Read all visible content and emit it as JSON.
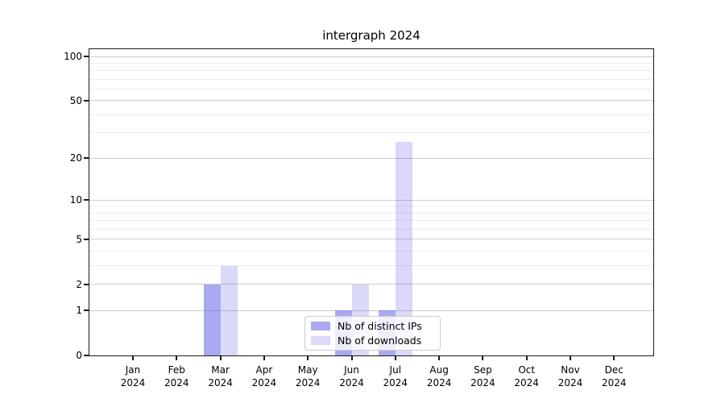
{
  "chart_data": {
    "type": "bar",
    "title": "intergraph 2024",
    "year_label": "2024",
    "categories": [
      "Jan",
      "Feb",
      "Mar",
      "Apr",
      "May",
      "Jun",
      "Jul",
      "Aug",
      "Sep",
      "Oct",
      "Nov",
      "Dec"
    ],
    "series": [
      {
        "name": "Nb of distinct IPs",
        "color": "rgba(85,85,225,0.5)",
        "values": [
          0,
          0,
          2,
          0,
          0,
          1,
          1,
          0,
          0,
          0,
          0,
          0
        ]
      },
      {
        "name": "Nb of downloads",
        "color": "rgba(85,85,225,0.22)",
        "values": [
          0,
          0,
          3,
          0,
          0,
          2,
          26,
          0,
          0,
          0,
          0,
          0
        ]
      }
    ],
    "xlabel": "",
    "ylabel": "",
    "y_scale": "log10(1+v)",
    "ylim": [
      0,
      112
    ],
    "y_major_ticks": [
      0,
      1,
      2,
      5,
      10,
      20,
      50,
      100
    ],
    "y_minor_gridlines": [
      3,
      4,
      6,
      7,
      8,
      9,
      30,
      40,
      60,
      70,
      80,
      90
    ],
    "grid": true,
    "legend_position": "lower center inside plot",
    "colors": {
      "major_grid": "#cccccc",
      "minor_grid": "#ececec",
      "axis": "#1a1a1a",
      "text": "#000000",
      "background": "#ffffff"
    }
  }
}
